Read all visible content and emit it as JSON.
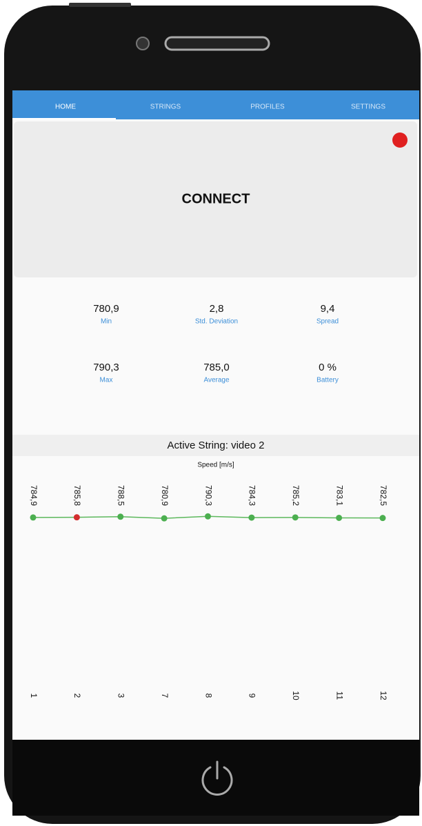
{
  "tabs": [
    "HOME",
    "STRINGS",
    "PROFILES",
    "SETTINGS"
  ],
  "connect": "CONNECT",
  "stats": [
    {
      "value": "780,9",
      "label": "Min"
    },
    {
      "value": "2,8",
      "label": "Std. Deviation"
    },
    {
      "value": "9,4",
      "label": "Spread"
    },
    {
      "value": "790,3",
      "label": "Max"
    },
    {
      "value": "785,0",
      "label": "Average"
    },
    {
      "value": "0 %",
      "label": "Battery"
    }
  ],
  "chart_data": {
    "type": "line",
    "title": "Active String: video 2",
    "y_label": "Speed [m/s]",
    "categories": [
      "1",
      "2",
      "3",
      "7",
      "8",
      "9",
      "10",
      "11",
      "12"
    ],
    "values": [
      784.9,
      785.8,
      788.5,
      780.9,
      790.3,
      784.3,
      785.2,
      783.1,
      782.5
    ],
    "value_labels": [
      "784,9",
      "785,8",
      "788,5",
      "780,9",
      "790,3",
      "784,3",
      "785,2",
      "783,1",
      "782,5"
    ],
    "color": "#5cb85c",
    "point_colors": [
      "#4caf50",
      "#d32f2f",
      "#4caf50",
      "#4caf50",
      "#4caf50",
      "#4caf50",
      "#4caf50",
      "#4caf50",
      "#4caf50"
    ],
    "ylim": [
      0,
      850
    ]
  }
}
